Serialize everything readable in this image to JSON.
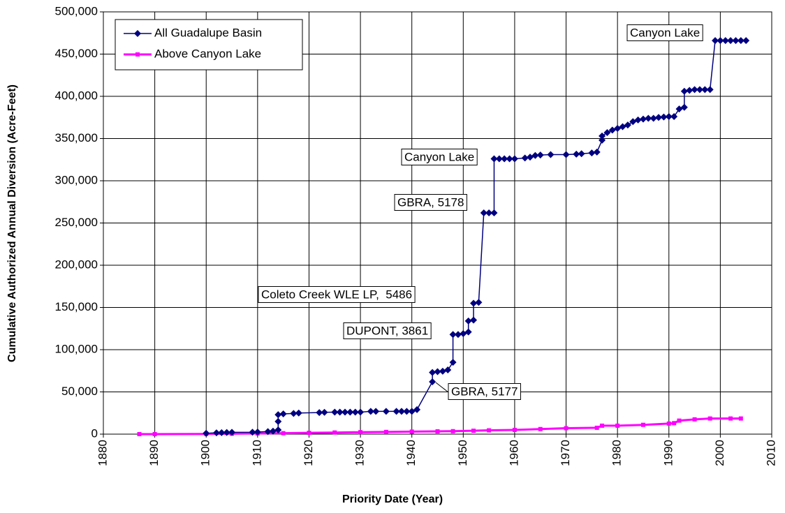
{
  "chart_data": {
    "type": "line",
    "xlabel": "Priority Date (Year)",
    "ylabel": "Cumulative Authorized Annual Diversion (Acre-Feet)",
    "xlim": [
      1880,
      2010
    ],
    "xticks": [
      1880,
      1890,
      1900,
      1910,
      1920,
      1930,
      1940,
      1950,
      1960,
      1970,
      1980,
      1990,
      2000,
      2010
    ],
    "ylim": [
      0,
      500000
    ],
    "yticks": [
      0,
      {
        "value": 50000,
        "label": "50,000"
      },
      {
        "value": 100000,
        "label": "100,000"
      },
      {
        "value": 150000,
        "label": "150,000"
      },
      {
        "value": 200000,
        "label": "200,000"
      },
      {
        "value": 250000,
        "label": "250,000"
      },
      {
        "value": 300000,
        "label": "300,000"
      },
      {
        "value": 350000,
        "label": "350,000"
      },
      {
        "value": 400000,
        "label": "400,000"
      },
      {
        "value": 450000,
        "label": "450,000"
      },
      {
        "value": 500000,
        "label": "500,000"
      }
    ],
    "grid": true,
    "legend": "upper left",
    "series": [
      {
        "name": "All Guadalupe Basin",
        "color": "#000080",
        "x": [
          1900,
          1902,
          1903,
          1904,
          1905,
          1909,
          1910,
          1912,
          1913,
          1914,
          1914,
          1914,
          1915,
          1917,
          1918,
          1922,
          1923,
          1925,
          1926,
          1927,
          1928,
          1929,
          1930,
          1932,
          1933,
          1935,
          1937,
          1938,
          1939,
          1940,
          1941,
          1944,
          1944,
          1945,
          1946,
          1947,
          1948,
          1948,
          1949,
          1950,
          1951,
          1951,
          1952,
          1952,
          1953,
          1954,
          1955,
          1956,
          1956,
          1957,
          1958,
          1959,
          1960,
          1962,
          1963,
          1964,
          1965,
          1967,
          1970,
          1972,
          1973,
          1975,
          1976,
          1977,
          1977,
          1978,
          1979,
          1980,
          1981,
          1982,
          1983,
          1984,
          1985,
          1986,
          1987,
          1988,
          1989,
          1990,
          1991,
          1992,
          1993,
          1993,
          1994,
          1995,
          1996,
          1997,
          1998,
          1999,
          2000,
          2001,
          2002,
          2003,
          2004,
          2005
        ],
        "values": [
          1000,
          1500,
          1800,
          2000,
          2200,
          2300,
          2500,
          3000,
          3500,
          5000,
          15000,
          23000,
          24000,
          24500,
          25000,
          25500,
          25800,
          26000,
          26000,
          26000,
          26000,
          26000,
          26000,
          27000,
          27000,
          27000,
          27000,
          27000,
          27000,
          27000,
          29000,
          62000,
          73000,
          74000,
          74500,
          76000,
          85000,
          118000,
          118000,
          119000,
          121000,
          134000,
          135000,
          155000,
          156000,
          262000,
          262000,
          262000,
          326000,
          326000,
          326000,
          326000,
          326000,
          327000,
          328000,
          330000,
          330500,
          331000,
          331000,
          331500,
          332000,
          333000,
          334000,
          348000,
          353000,
          357000,
          360000,
          362000,
          364000,
          366000,
          370000,
          372000,
          373000,
          374000,
          374000,
          375000,
          375500,
          376000,
          376000,
          385000,
          387000,
          406000,
          407000,
          408000,
          408000,
          408000,
          408000,
          466000,
          466000,
          466000,
          466000,
          466000,
          466000,
          466000
        ]
      },
      {
        "name": "Above Canyon Lake",
        "color": "#ff00ff",
        "x": [
          1887,
          1890,
          1900,
          1905,
          1910,
          1915,
          1920,
          1925,
          1930,
          1935,
          1940,
          1945,
          1948,
          1952,
          1955,
          1960,
          1965,
          1970,
          1976,
          1977,
          1980,
          1985,
          1990,
          1991,
          1992,
          1995,
          1998,
          2002,
          2004
        ],
        "values": [
          0,
          0,
          200,
          500,
          800,
          1100,
          1500,
          1900,
          2300,
          2600,
          3000,
          3300,
          3500,
          4000,
          4500,
          5000,
          6000,
          7000,
          7500,
          10000,
          10000,
          11000,
          12500,
          13000,
          16000,
          17500,
          18500,
          18500,
          18500
        ]
      }
    ],
    "annotations": [
      "Canyon Lake",
      "Canyon Lake",
      "GBRA, 5178",
      "Coleto Creek WLE LP,  5486",
      "DUPONT, 3861",
      "GBRA, 5177"
    ]
  }
}
